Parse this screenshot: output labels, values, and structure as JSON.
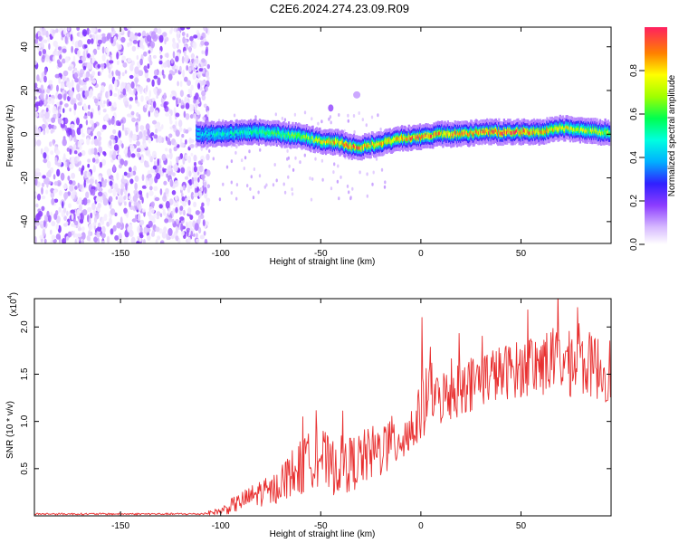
{
  "page": {
    "title": "C2E6.2024.274.23.09.R09"
  },
  "chart_data": [
    {
      "type": "heatmap",
      "xlabel": "Height of straight line (km)",
      "ylabel": "Frequency (Hz)",
      "xlim": [
        -193,
        95
      ],
      "ylim": [
        -50,
        49
      ],
      "x_ticks": [
        -150,
        -100,
        -50,
        0,
        50
      ],
      "x_tick_labels": [
        "-150",
        "-100",
        "-50",
        "0",
        "50"
      ],
      "y_ticks": [
        -40,
        -20,
        0,
        20,
        40
      ],
      "y_tick_labels": [
        "-40",
        "-20",
        "0",
        "20",
        "40"
      ],
      "colorbar": {
        "label": "Normalized spectral amplitude",
        "range": [
          0,
          1
        ],
        "ticks": [
          0.0,
          0.2,
          0.4,
          0.6,
          0.8
        ],
        "tick_labels": [
          "0.0",
          "0.2",
          "0.4",
          "0.6",
          "0.8"
        ]
      },
      "noise_region": {
        "x": [
          -193,
          -110
        ],
        "amplitude_range": [
          0.02,
          0.2
        ]
      },
      "ridge": {
        "description_points_x": [
          -112,
          -100,
          -90,
          -80,
          -70,
          -60,
          -50,
          -40,
          -35,
          -30,
          -20,
          -10,
          0,
          10,
          20,
          30,
          40,
          50,
          60,
          70,
          80,
          90
        ],
        "frequency_hz": [
          0,
          0,
          1,
          1,
          0,
          -1,
          -3,
          -4,
          -6,
          -6,
          -4,
          -2,
          -1,
          0,
          0,
          1,
          1,
          1,
          1,
          3,
          2,
          1
        ],
        "peak_amplitude": [
          0.4,
          0.5,
          0.5,
          0.55,
          0.6,
          0.65,
          0.75,
          0.85,
          0.9,
          0.85,
          0.8,
          0.85,
          0.9,
          0.85,
          0.85,
          0.9,
          0.95,
          0.9,
          0.85,
          0.75,
          0.75,
          0.7
        ]
      },
      "grid": false
    },
    {
      "type": "line",
      "xlabel": "Height of straight line (km)",
      "ylabel": "SNR (10 * v/v)",
      "y_multiplier": "(x10",
      "y_multiplier_exp": "4",
      "y_multiplier_close": ")",
      "xlim": [
        -193,
        95
      ],
      "ylim": [
        0,
        2.3
      ],
      "x_ticks": [
        -150,
        -100,
        -50,
        0,
        50
      ],
      "x_tick_labels": [
        "-150",
        "-100",
        "-50",
        "0",
        "50"
      ],
      "y_ticks": [
        0.5,
        1.0,
        1.5,
        2.0
      ],
      "y_tick_labels": [
        "0.5",
        "1.0",
        "1.5",
        "2.0"
      ],
      "color": "#e83030",
      "series": [
        {
          "x": [
            -193,
            -180,
            -160,
            -140,
            -120,
            -110,
            -100,
            -95,
            -90,
            -85,
            -80,
            -75,
            -70,
            -65,
            -60,
            -55,
            -52,
            -48,
            -45,
            -40,
            -35,
            -30,
            -25,
            -20,
            -15,
            -10,
            -5,
            -2,
            0,
            2,
            5,
            8,
            10,
            15,
            20,
            25,
            30,
            35,
            40,
            45,
            50,
            55,
            60,
            65,
            70,
            75,
            80,
            85,
            90,
            95
          ],
          "y": [
            0.02,
            0.02,
            0.02,
            0.02,
            0.02,
            0.02,
            0.05,
            0.1,
            0.15,
            0.2,
            0.25,
            0.25,
            0.35,
            0.45,
            0.5,
            0.6,
            0.7,
            0.6,
            0.5,
            0.55,
            0.55,
            0.6,
            0.65,
            0.7,
            0.75,
            0.85,
            0.9,
            1.0,
            1.1,
            1.2,
            1.35,
            1.2,
            1.25,
            1.3,
            1.35,
            1.4,
            1.45,
            1.5,
            1.5,
            1.55,
            1.55,
            1.6,
            1.6,
            1.65,
            1.65,
            1.6,
            1.6,
            1.6,
            1.55,
            1.55
          ],
          "noise_amplitude": [
            0.01,
            0.01,
            0.01,
            0.01,
            0.01,
            0.01,
            0.04,
            0.08,
            0.1,
            0.12,
            0.15,
            0.15,
            0.2,
            0.25,
            0.3,
            0.3,
            0.4,
            0.3,
            0.3,
            0.3,
            0.3,
            0.3,
            0.3,
            0.3,
            0.3,
            0.3,
            0.3,
            0.3,
            0.3,
            0.35,
            0.3,
            0.3,
            0.3,
            0.3,
            0.3,
            0.3,
            0.3,
            0.3,
            0.3,
            0.3,
            0.3,
            0.35,
            0.35,
            0.35,
            0.35,
            0.35,
            0.35,
            0.35,
            0.35,
            0.35
          ]
        }
      ],
      "grid": false
    }
  ]
}
